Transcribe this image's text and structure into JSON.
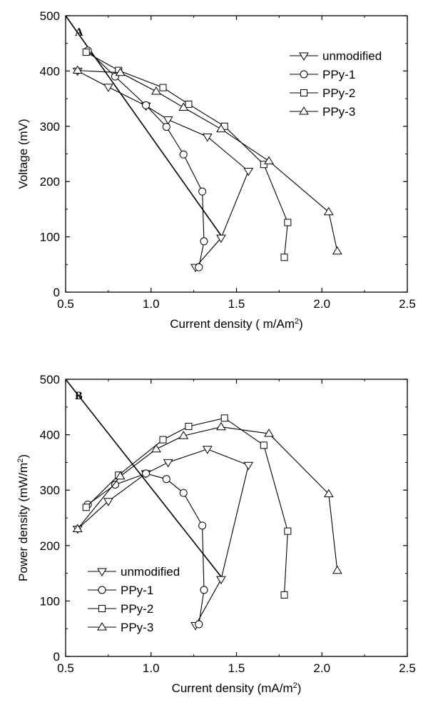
{
  "chart_data": [
    {
      "type": "line",
      "panel_label": "A",
      "xlabel": "Current density ( m/Am",
      "xlabel_sup": "2",
      "xlabel_suffix": ")",
      "ylabel": "Voltage (mV)",
      "xlim": [
        0.5,
        2.5
      ],
      "ylim": [
        0,
        500
      ],
      "xticks": [
        "0.5",
        "1.0",
        "1.5",
        "2.0",
        "2.5"
      ],
      "yticks": [
        "0",
        "100",
        "200",
        "300",
        "400",
        "500"
      ],
      "legend_position": "top-right",
      "grid": false,
      "series": [
        {
          "name": "unmodified",
          "marker": "triangle-down",
          "x": [
            0.57,
            0.75,
            0.97,
            1.1,
            1.33,
            1.57,
            1.41,
            1.26
          ],
          "y": [
            400,
            371,
            337,
            312,
            281,
            219,
            98,
            45
          ]
        },
        {
          "name": "PPy-1",
          "marker": "circle",
          "x": [
            0.63,
            0.79,
            0.97,
            1.09,
            1.19,
            1.3,
            1.31,
            1.28
          ],
          "y": [
            437,
            390,
            338,
            299,
            249,
            182,
            92,
            45
          ]
        },
        {
          "name": "PPy-2",
          "marker": "square",
          "x": [
            0.62,
            0.81,
            1.07,
            1.22,
            1.43,
            1.66,
            1.8,
            1.78
          ],
          "y": [
            434,
            401,
            370,
            340,
            300,
            231,
            126,
            63
          ]
        },
        {
          "name": "PPy-3",
          "marker": "triangle-up",
          "x": [
            0.57,
            0.82,
            1.03,
            1.19,
            1.41,
            1.69,
            2.04,
            2.09
          ],
          "y": [
            401,
            397,
            363,
            334,
            295,
            237,
            145,
            74
          ]
        }
      ],
      "extra_line": {
        "x": [
          0.5,
          1.42
        ],
        "y": [
          500,
          98
        ]
      }
    },
    {
      "type": "line",
      "panel_label": "B",
      "xlabel": "Current density (mA/m",
      "xlabel_sup": "2",
      "xlabel_suffix": ")",
      "ylabel": "Power density (mW/m",
      "ylabel_sup": "2",
      "ylabel_suffix": ")",
      "xlim": [
        0.5,
        2.5
      ],
      "ylim": [
        0,
        500
      ],
      "xticks": [
        "0.5",
        "1.0",
        "1.5",
        "2.0",
        "2.5"
      ],
      "yticks": [
        "0",
        "100",
        "200",
        "300",
        "400",
        "500"
      ],
      "legend_position": "bottom-left",
      "grid": false,
      "series": [
        {
          "name": "unmodified",
          "marker": "triangle-down",
          "x": [
            0.57,
            0.75,
            0.97,
            1.1,
            1.33,
            1.57,
            1.41,
            1.26
          ],
          "y": [
            230,
            280,
            330,
            350,
            374,
            345,
            139,
            56
          ]
        },
        {
          "name": "PPy-1",
          "marker": "circle",
          "x": [
            0.63,
            0.79,
            0.97,
            1.09,
            1.19,
            1.3,
            1.31,
            1.28
          ],
          "y": [
            274,
            310,
            330,
            320,
            295,
            236,
            120,
            58
          ]
        },
        {
          "name": "PPy-2",
          "marker": "square",
          "x": [
            0.62,
            0.81,
            1.07,
            1.22,
            1.43,
            1.66,
            1.8,
            1.78
          ],
          "y": [
            269,
            327,
            391,
            415,
            430,
            381,
            226,
            111
          ]
        },
        {
          "name": "PPy-3",
          "marker": "triangle-up",
          "x": [
            0.57,
            0.82,
            1.03,
            1.19,
            1.41,
            1.69,
            2.04,
            2.09
          ],
          "y": [
            230,
            325,
            374,
            398,
            414,
            402,
            293,
            155
          ]
        }
      ],
      "extra_line": {
        "x": [
          0.5,
          1.42
        ],
        "y": [
          500,
          140
        ]
      }
    }
  ]
}
